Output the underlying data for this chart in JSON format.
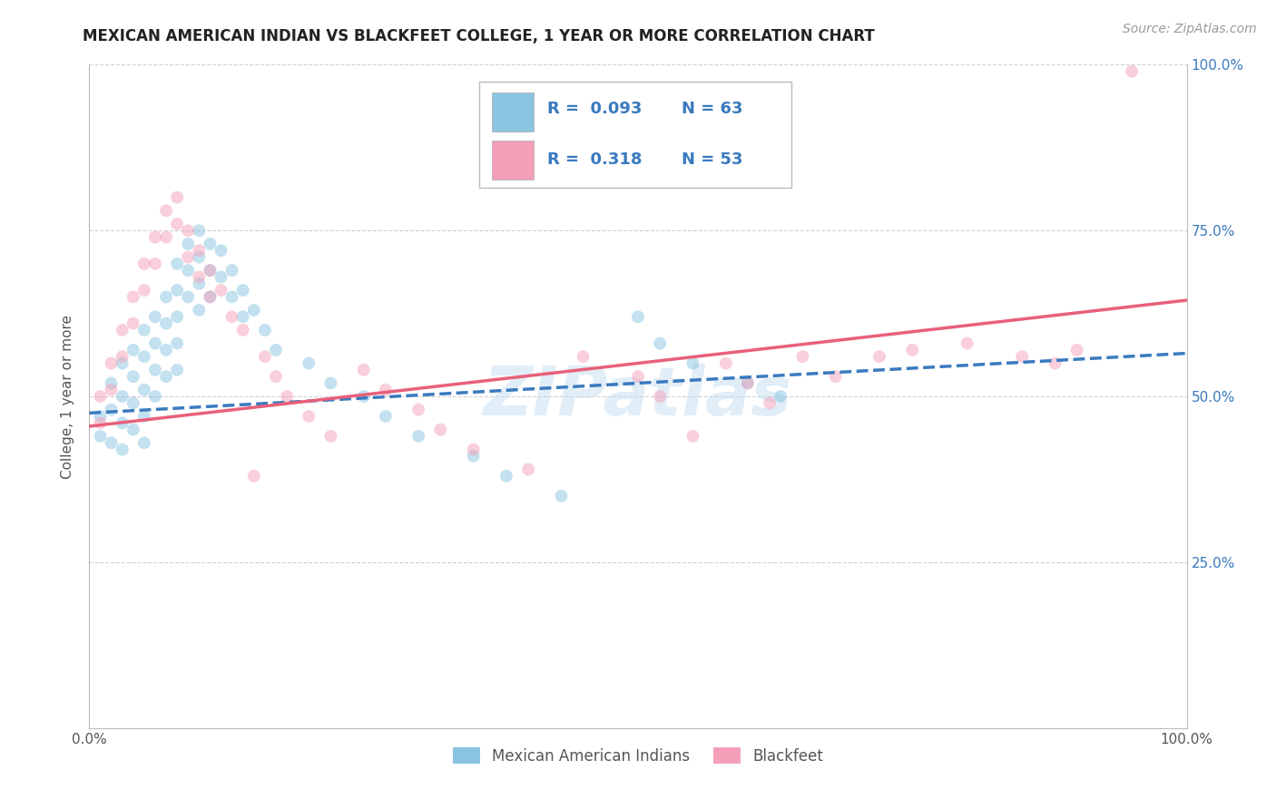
{
  "title": "MEXICAN AMERICAN INDIAN VS BLACKFEET COLLEGE, 1 YEAR OR MORE CORRELATION CHART",
  "source_text": "Source: ZipAtlas.com",
  "ylabel": "College, 1 year or more",
  "xlim": [
    0.0,
    1.0
  ],
  "ylim": [
    0.0,
    1.0
  ],
  "xtick_labels": [
    "0.0%",
    "100.0%"
  ],
  "ytick_labels": [
    "25.0%",
    "50.0%",
    "75.0%",
    "100.0%"
  ],
  "ytick_positions": [
    0.25,
    0.5,
    0.75,
    1.0
  ],
  "legend_r1": "R =  0.093",
  "legend_n1": "N = 63",
  "legend_r2": "R =  0.318",
  "legend_n2": "N = 53",
  "color_blue": "#89c4e1",
  "color_pink": "#f4a0b8",
  "color_blue_line": "#3a7abf",
  "color_pink_line": "#e8607a",
  "watermark": "ZIPatlas",
  "background_color": "#ffffff",
  "grid_color": "#cccccc",
  "title_color": "#222222",
  "scatter_alpha": 0.5,
  "scatter_size": 100,
  "blue_points_x": [
    0.01,
    0.01,
    0.02,
    0.02,
    0.02,
    0.03,
    0.03,
    0.03,
    0.03,
    0.04,
    0.04,
    0.04,
    0.04,
    0.05,
    0.05,
    0.05,
    0.05,
    0.05,
    0.06,
    0.06,
    0.06,
    0.06,
    0.07,
    0.07,
    0.07,
    0.07,
    0.08,
    0.08,
    0.08,
    0.08,
    0.08,
    0.09,
    0.09,
    0.09,
    0.1,
    0.1,
    0.1,
    0.1,
    0.11,
    0.11,
    0.11,
    0.12,
    0.12,
    0.13,
    0.13,
    0.14,
    0.14,
    0.15,
    0.16,
    0.17,
    0.2,
    0.22,
    0.25,
    0.27,
    0.3,
    0.35,
    0.38,
    0.43,
    0.5,
    0.52,
    0.55,
    0.6,
    0.63
  ],
  "blue_points_y": [
    0.47,
    0.44,
    0.52,
    0.48,
    0.43,
    0.55,
    0.5,
    0.46,
    0.42,
    0.57,
    0.53,
    0.49,
    0.45,
    0.6,
    0.56,
    0.51,
    0.47,
    0.43,
    0.62,
    0.58,
    0.54,
    0.5,
    0.65,
    0.61,
    0.57,
    0.53,
    0.7,
    0.66,
    0.62,
    0.58,
    0.54,
    0.73,
    0.69,
    0.65,
    0.75,
    0.71,
    0.67,
    0.63,
    0.73,
    0.69,
    0.65,
    0.72,
    0.68,
    0.69,
    0.65,
    0.66,
    0.62,
    0.63,
    0.6,
    0.57,
    0.55,
    0.52,
    0.5,
    0.47,
    0.44,
    0.41,
    0.38,
    0.35,
    0.62,
    0.58,
    0.55,
    0.52,
    0.5
  ],
  "pink_points_x": [
    0.01,
    0.01,
    0.02,
    0.02,
    0.03,
    0.03,
    0.04,
    0.04,
    0.05,
    0.05,
    0.06,
    0.06,
    0.07,
    0.07,
    0.08,
    0.08,
    0.09,
    0.09,
    0.1,
    0.1,
    0.11,
    0.11,
    0.12,
    0.13,
    0.14,
    0.15,
    0.16,
    0.17,
    0.18,
    0.2,
    0.22,
    0.25,
    0.27,
    0.3,
    0.32,
    0.35,
    0.4,
    0.45,
    0.5,
    0.52,
    0.55,
    0.58,
    0.6,
    0.62,
    0.65,
    0.68,
    0.72,
    0.75,
    0.8,
    0.85,
    0.88,
    0.9,
    0.95
  ],
  "pink_points_y": [
    0.5,
    0.46,
    0.55,
    0.51,
    0.6,
    0.56,
    0.65,
    0.61,
    0.7,
    0.66,
    0.74,
    0.7,
    0.78,
    0.74,
    0.8,
    0.76,
    0.75,
    0.71,
    0.72,
    0.68,
    0.69,
    0.65,
    0.66,
    0.62,
    0.6,
    0.38,
    0.56,
    0.53,
    0.5,
    0.47,
    0.44,
    0.54,
    0.51,
    0.48,
    0.45,
    0.42,
    0.39,
    0.56,
    0.53,
    0.5,
    0.44,
    0.55,
    0.52,
    0.49,
    0.56,
    0.53,
    0.56,
    0.57,
    0.58,
    0.56,
    0.55,
    0.57,
    0.99
  ],
  "blue_line_x": [
    0.0,
    1.0
  ],
  "blue_line_y_start": 0.475,
  "blue_line_y_end": 0.565,
  "pink_line_x": [
    0.0,
    1.0
  ],
  "pink_line_y_start": 0.455,
  "pink_line_y_end": 0.645
}
